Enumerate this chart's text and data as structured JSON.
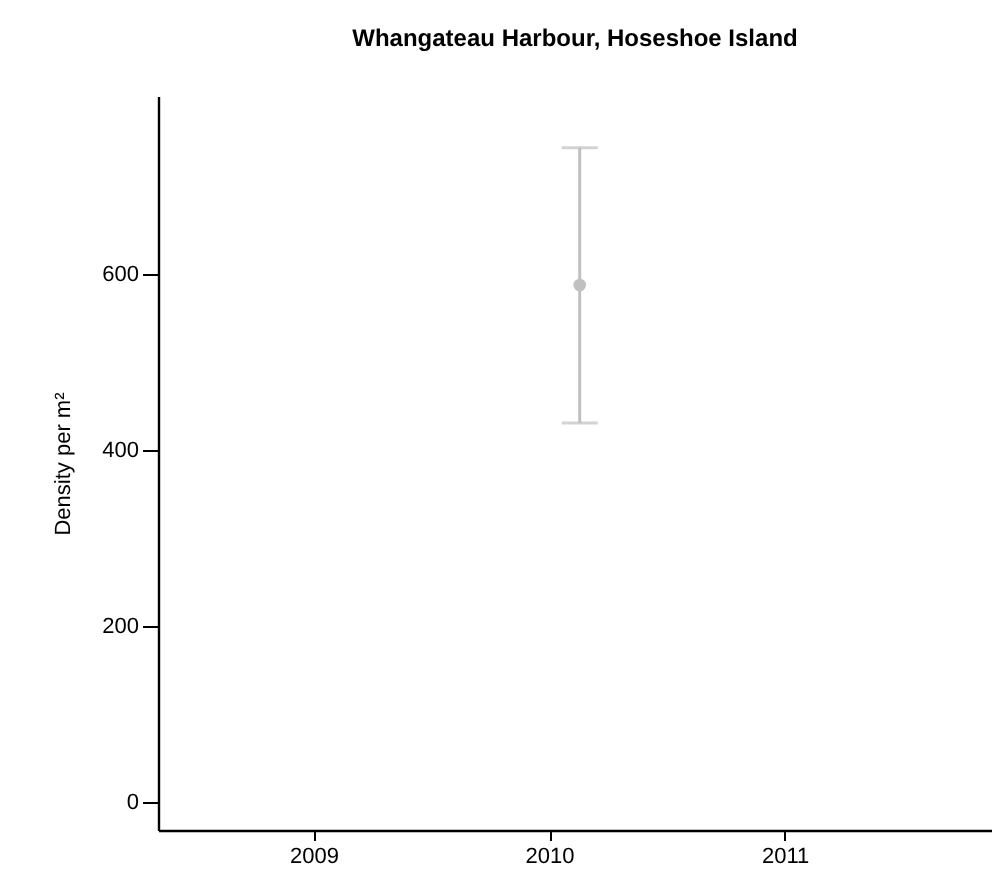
{
  "chart_data": {
    "type": "scatter",
    "title": "Whangateau Harbour, Hoseshoe Island",
    "ylabel": "Density  per m²",
    "x": [
      2010.13
    ],
    "series": [
      {
        "color": "#c0c0c0",
        "values": [
          588
        ],
        "errors": [
          [
            431,
            744
          ]
        ]
      }
    ],
    "xlim": [
      2008.34,
      2011.88
    ],
    "xticks": [
      2009,
      2010,
      2011
    ],
    "ylim": [
      -32,
      803
    ],
    "yticks": [
      0,
      200,
      400,
      600
    ],
    "grid": false,
    "marker": "circle"
  }
}
